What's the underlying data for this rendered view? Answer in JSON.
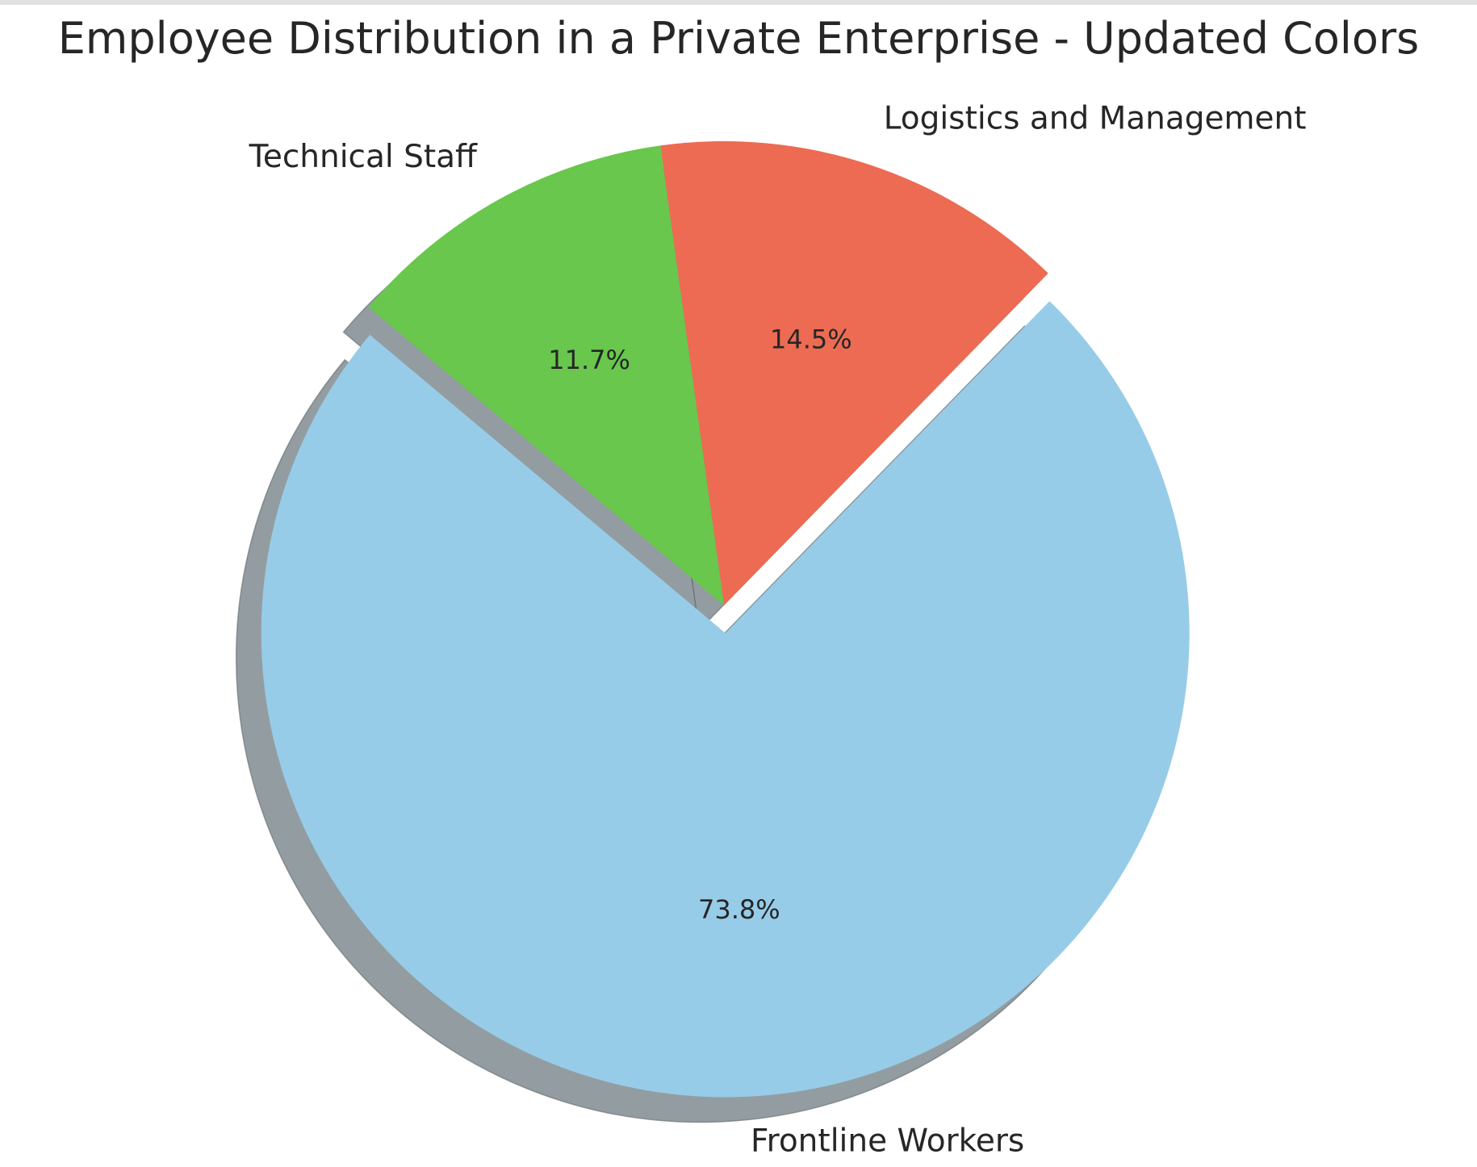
{
  "chart_data": {
    "type": "pie",
    "title": "Employee Distribution in a Private Enterprise - Updated Colors",
    "slices": [
      {
        "label": "Frontline Workers",
        "value": 73.8,
        "pct_label": "73.8%",
        "color": "#97cce8",
        "explode": 0.06
      },
      {
        "label": "Logistics and Management",
        "value": 14.5,
        "pct_label": "14.5%",
        "color": "#ec6b52",
        "explode": 0
      },
      {
        "label": "Technical Staff",
        "value": 11.7,
        "pct_label": "11.7%",
        "color": "#68c74c",
        "explode": 0
      }
    ],
    "start_angle_deg": 140,
    "direction": "counterclockwise",
    "shadow": true,
    "shadow_color": "#939da1",
    "legend": "none"
  }
}
